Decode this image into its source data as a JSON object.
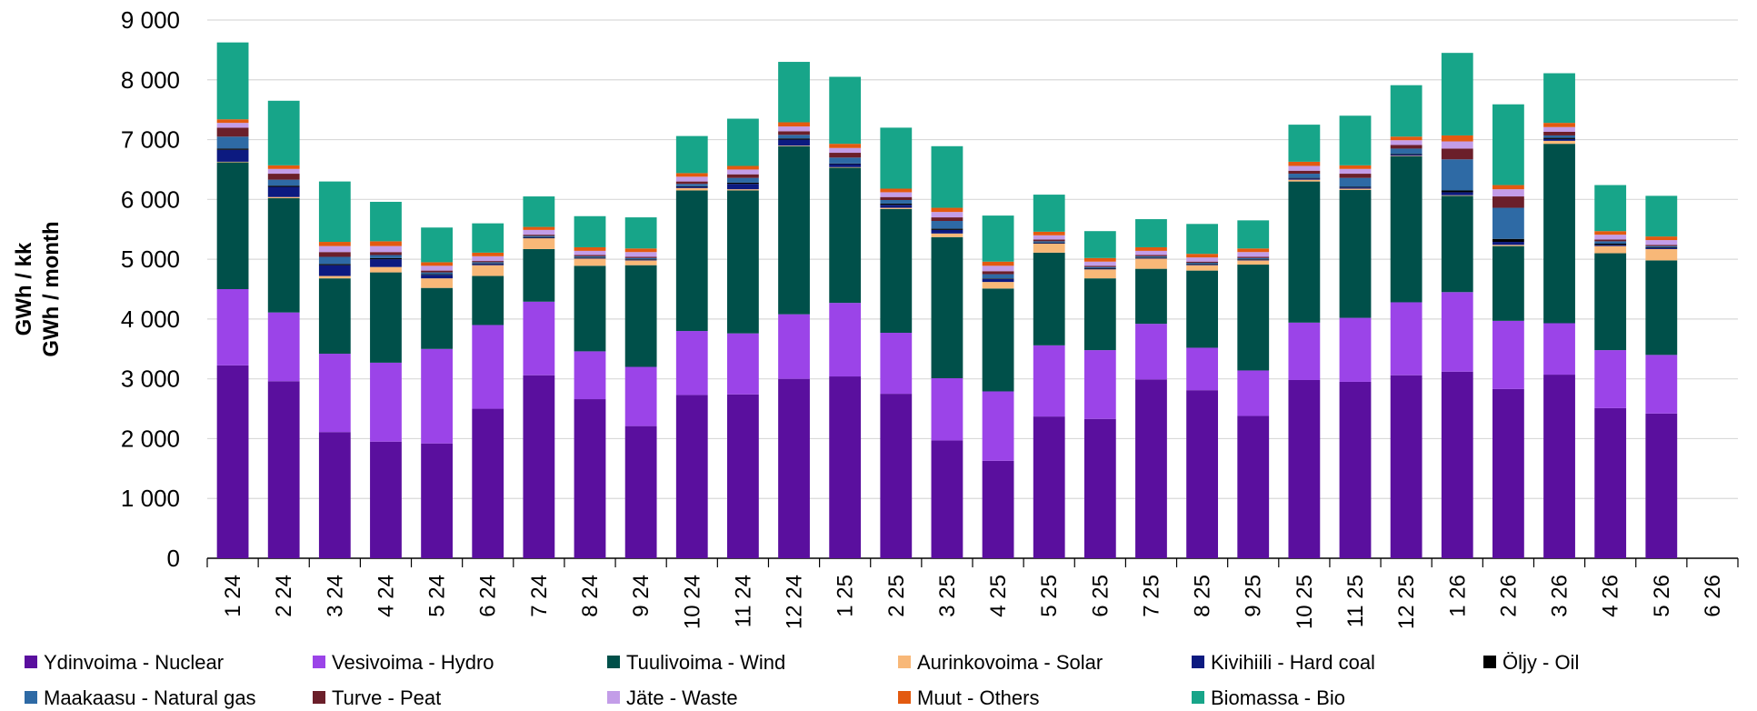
{
  "chart_data": {
    "type": "stacked_bar",
    "y_label": "GWh / kk",
    "y_label_2": "GWh / month",
    "categories": [
      "1 24",
      "2 24",
      "3 24",
      "4 24",
      "5 24",
      "6 24",
      "7 24",
      "8 24",
      "9 24",
      "10 24",
      "11 24",
      "12 24",
      "1 25",
      "2 25",
      "3 25",
      "4 25",
      "5 25",
      "6 25",
      "7 25",
      "8 25",
      "9 25",
      "10 25",
      "11 25",
      "12 25",
      "1 26",
      "2 26",
      "3 26",
      "4 26",
      "5 26",
      "6 26"
    ],
    "ylim": [
      0,
      9000
    ],
    "yticks": [
      0,
      {
        "value": 1000,
        "label": "1 000"
      },
      {
        "value": 2000,
        "label": "2 000"
      },
      {
        "value": 3000,
        "label": "3 000"
      },
      {
        "value": 4000,
        "label": "4 000"
      },
      {
        "value": 5000,
        "label": "5 000"
      },
      {
        "value": 6000,
        "label": "6 000"
      },
      {
        "value": 7000,
        "label": "7 000"
      },
      {
        "value": 8000,
        "label": "8 000"
      },
      {
        "value": 9000,
        "label": "9 000"
      }
    ],
    "grid": true,
    "legend": "bottom",
    "series": [
      {
        "name": "Ydinvoima - Nuclear",
        "color": "#5a0f9e",
        "values": [
          3225,
          2960,
          2110,
          1950,
          1920,
          2500,
          3060,
          2660,
          2210,
          2730,
          2740,
          3000,
          3040,
          2750,
          1970,
          1630,
          2370,
          2330,
          2990,
          2810,
          2380,
          2980,
          2950,
          3060,
          3120,
          2830,
          3070,
          2510,
          2420,
          null
        ]
      },
      {
        "name": "Vesivoima - Hydro",
        "color": "#9b44e8",
        "values": [
          1275,
          1150,
          1310,
          1320,
          1580,
          1400,
          1230,
          800,
          990,
          1070,
          1020,
          1080,
          1230,
          1020,
          1040,
          1160,
          1190,
          1150,
          930,
          710,
          760,
          960,
          1070,
          1220,
          1330,
          1140,
          860,
          970,
          980,
          null
        ]
      },
      {
        "name": "Tuulivoima - Wind",
        "color": "#00504a",
        "values": [
          2120,
          1910,
          1260,
          1510,
          1020,
          820,
          880,
          1430,
          1700,
          2350,
          2390,
          2810,
          2260,
          2070,
          2360,
          1720,
          1550,
          1200,
          920,
          1290,
          1770,
          2360,
          2140,
          2440,
          1610,
          1250,
          3000,
          1620,
          1580,
          null
        ]
      },
      {
        "name": "Aurinkovoima - Solar",
        "color": "#f8b878",
        "values": [
          10,
          20,
          40,
          90,
          160,
          180,
          180,
          120,
          80,
          40,
          20,
          10,
          10,
          20,
          60,
          110,
          150,
          150,
          170,
          90,
          70,
          30,
          20,
          10,
          10,
          20,
          50,
          120,
          190,
          null
        ]
      },
      {
        "name": "Kivihiili - Hard coal",
        "color": "#0c1a80",
        "values": [
          200,
          170,
          180,
          130,
          60,
          20,
          10,
          10,
          10,
          20,
          90,
          100,
          50,
          50,
          60,
          50,
          10,
          10,
          10,
          10,
          10,
          20,
          20,
          20,
          50,
          50,
          30,
          20,
          20,
          null
        ]
      },
      {
        "name": "Öljy - Oil",
        "color": "#000000",
        "values": [
          20,
          20,
          20,
          20,
          10,
          10,
          10,
          10,
          10,
          10,
          20,
          20,
          10,
          20,
          20,
          10,
          10,
          10,
          10,
          10,
          10,
          10,
          10,
          10,
          30,
          50,
          20,
          20,
          10,
          null
        ]
      },
      {
        "name": "Maakaasu - Natural gas",
        "color": "#2e6aa5",
        "values": [
          200,
          100,
          120,
          50,
          30,
          20,
          20,
          20,
          20,
          40,
          80,
          60,
          100,
          60,
          130,
          70,
          20,
          20,
          20,
          20,
          20,
          70,
          150,
          90,
          520,
          520,
          40,
          40,
          20,
          null
        ]
      },
      {
        "name": "Turve - Peat",
        "color": "#6b1f2a",
        "values": [
          150,
          100,
          80,
          50,
          30,
          20,
          20,
          20,
          20,
          40,
          60,
          60,
          80,
          50,
          60,
          50,
          30,
          20,
          20,
          20,
          20,
          50,
          70,
          60,
          180,
          190,
          60,
          30,
          20,
          null
        ]
      },
      {
        "name": "Jäte - Waste",
        "color": "#c39de8",
        "values": [
          80,
          80,
          100,
          100,
          80,
          80,
          80,
          70,
          80,
          80,
          80,
          80,
          80,
          80,
          90,
          90,
          70,
          70,
          70,
          70,
          80,
          80,
          80,
          80,
          120,
          120,
          80,
          80,
          80,
          null
        ]
      },
      {
        "name": "Muut - Others",
        "color": "#e35a10",
        "values": [
          60,
          60,
          70,
          80,
          60,
          60,
          50,
          60,
          60,
          60,
          60,
          70,
          70,
          60,
          70,
          70,
          60,
          60,
          60,
          60,
          60,
          70,
          60,
          60,
          100,
          70,
          70,
          60,
          60,
          null
        ]
      },
      {
        "name": "Biomassa - Bio",
        "color": "#17a589",
        "values": [
          1285,
          1080,
          1010,
          660,
          580,
          490,
          510,
          520,
          520,
          620,
          790,
          1010,
          1120,
          1020,
          1030,
          770,
          620,
          450,
          470,
          500,
          470,
          620,
          830,
          860,
          1380,
          1350,
          830,
          770,
          680,
          null
        ]
      }
    ]
  }
}
